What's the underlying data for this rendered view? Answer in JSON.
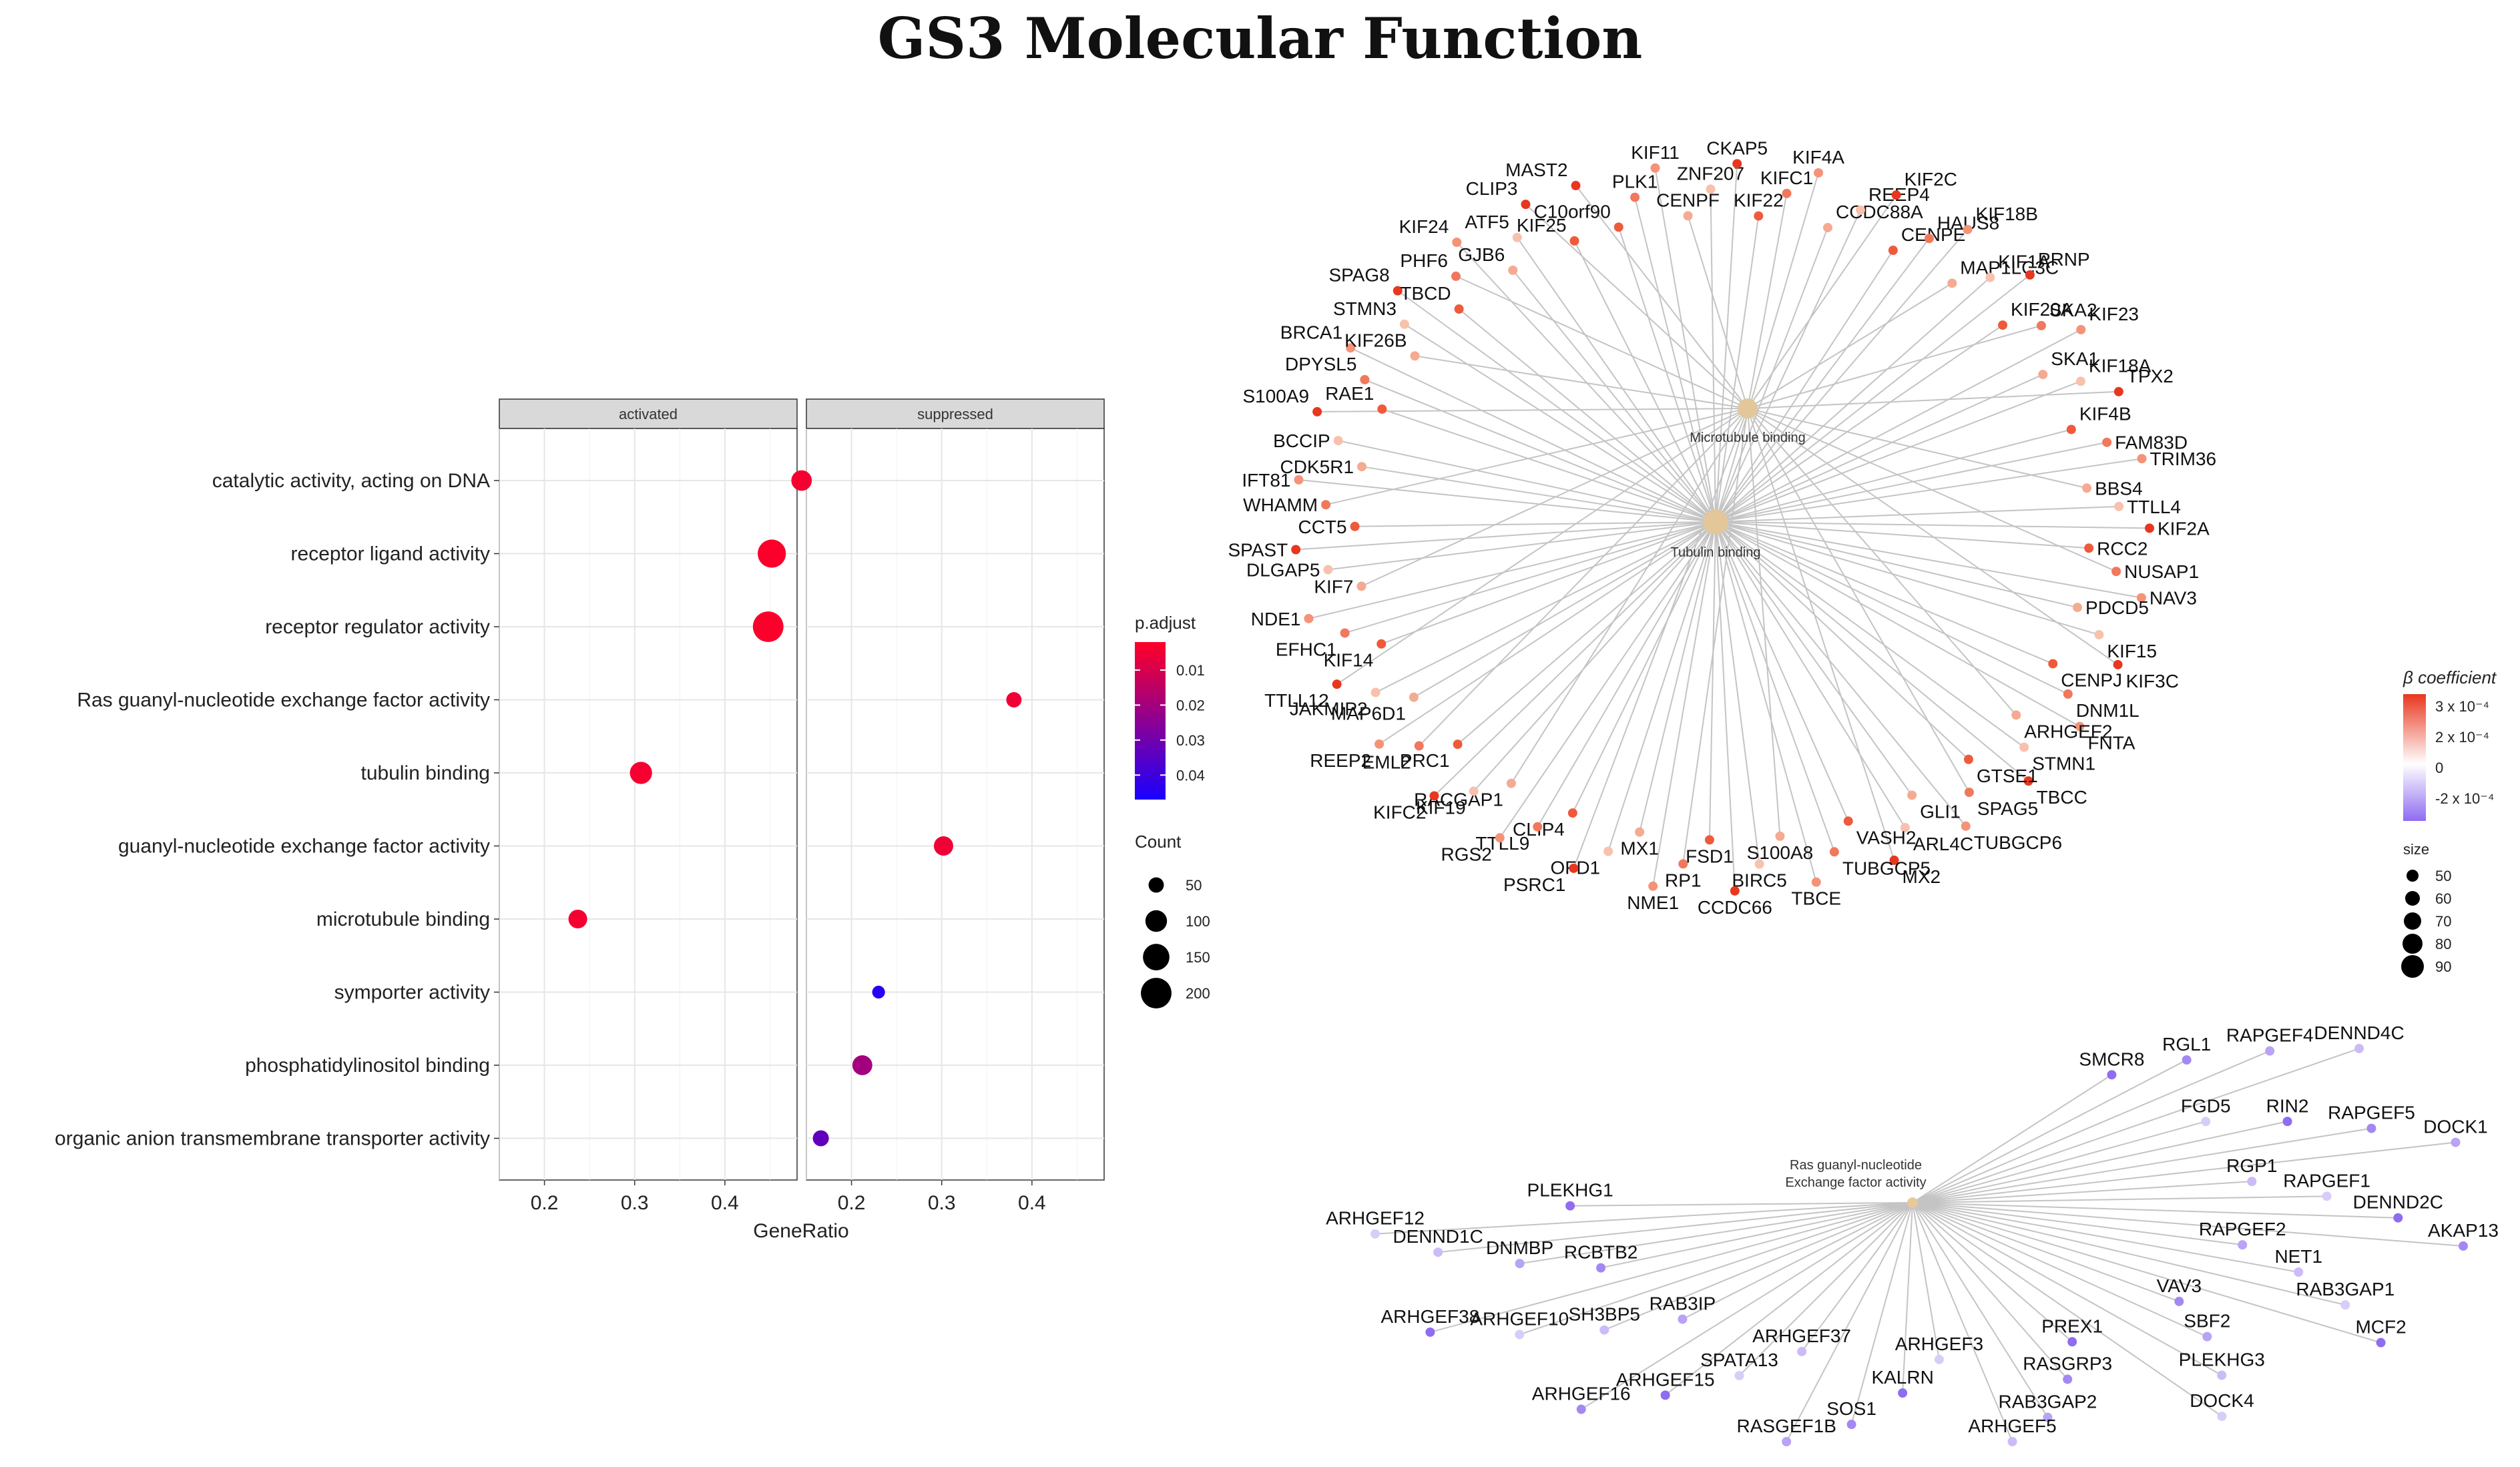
{
  "title": "GS3 Molecular Function",
  "chart_data": [
    {
      "type": "scatter",
      "subtype": "dotplot",
      "facets": [
        "activated",
        "suppressed"
      ],
      "xlabel": "GeneRatio",
      "x_ticks": [
        "0.2",
        "0.3",
        "0.4"
      ],
      "xlim": [
        0.15,
        0.48
      ],
      "categories": [
        "catalytic activity, acting on DNA",
        "receptor ligand activity",
        "receptor regulator activity",
        "Ras guanyl-nucleotide exchange factor activity",
        "tubulin binding",
        "guanyl-nucleotide exchange factor activity",
        "microtubule binding",
        "symporter activity",
        "phosphatidylinositol binding",
        "organic anion transmembrane transporter activity"
      ],
      "points": [
        {
          "term": "catalytic activity, acting on DNA",
          "facet": "activated",
          "gene_ratio": 0.485,
          "count": 90,
          "p_adjust": 0.004
        },
        {
          "term": "receptor ligand activity",
          "facet": "activated",
          "gene_ratio": 0.452,
          "count": 170,
          "p_adjust": 0.003
        },
        {
          "term": "receptor regulator activity",
          "facet": "activated",
          "gene_ratio": 0.448,
          "count": 200,
          "p_adjust": 0.003
        },
        {
          "term": "Ras guanyl-nucleotide exchange factor activity",
          "facet": "suppressed",
          "gene_ratio": 0.38,
          "count": 50,
          "p_adjust": 0.005
        },
        {
          "term": "tubulin binding",
          "facet": "activated",
          "gene_ratio": 0.307,
          "count": 105,
          "p_adjust": 0.004
        },
        {
          "term": "guanyl-nucleotide exchange factor activity",
          "facet": "suppressed",
          "gene_ratio": 0.302,
          "count": 80,
          "p_adjust": 0.005
        },
        {
          "term": "microtubule binding",
          "facet": "activated",
          "gene_ratio": 0.237,
          "count": 75,
          "p_adjust": 0.004
        },
        {
          "term": "symporter activity",
          "facet": "suppressed",
          "gene_ratio": 0.23,
          "count": 35,
          "p_adjust": 0.045
        },
        {
          "term": "phosphatidylinositol binding",
          "facet": "suppressed",
          "gene_ratio": 0.212,
          "count": 85,
          "p_adjust": 0.02
        },
        {
          "term": "organic anion transmembrane transporter activity",
          "facet": "suppressed",
          "gene_ratio": 0.166,
          "count": 55,
          "p_adjust": 0.033
        }
      ],
      "legend_color": {
        "title": "p.adjust",
        "ticks": [
          "0.01",
          "0.02",
          "0.03",
          "0.04"
        ],
        "range": [
          0.002,
          0.047
        ],
        "low_color": "#ff0026",
        "high_color": "#1a00ff"
      },
      "legend_size": {
        "title": "Count",
        "ticks": [
          "50",
          "100",
          "150",
          "200"
        ]
      }
    },
    {
      "type": "network",
      "hubs": [
        {
          "id": "mb",
          "label": "Microtubule binding"
        },
        {
          "id": "tb",
          "label": "Tubulin binding"
        },
        {
          "id": "ras",
          "label": "Ras guanyl-nucleotide\nExchange factor activity"
        }
      ],
      "legend": {
        "color_title": "β coefficient",
        "color_ticks": [
          "3 x 10⁻⁴",
          "2 x 10⁻⁴",
          "0",
          "-2 x 10⁻⁴"
        ],
        "size_title": "size",
        "size_ticks": [
          "50",
          "60",
          "70",
          "80",
          "90"
        ]
      },
      "genes_tubulin": [
        "MAST2",
        "C10orf90",
        "PLK1",
        "KIF11",
        "CENPF",
        "ZNF207",
        "CKAP5",
        "KIF22",
        "KIFC1",
        "KIF4A",
        "CCDC88A",
        "REEP4",
        "KIF2C",
        "CENPE",
        "HAUS8",
        "KIF18B",
        "MAP1LC3C",
        "KIF1A",
        "PRNP",
        "KIF20A",
        "SKA2",
        "KIF23",
        "SKA1",
        "KIF18A",
        "TPX2",
        "KIF4B",
        "FAM83D",
        "TRIM36",
        "BBS4",
        "TTLL4",
        "KIF2A",
        "RCC2",
        "NUSAP1",
        "NAV3",
        "PDCD5",
        "KIF15",
        "KIF3C",
        "CENPJ",
        "DNM1L",
        "FNTA",
        "ARHGEF2",
        "STMN1",
        "TBCC",
        "GTSE1",
        "SPAG5",
        "TUBGCP6",
        "GLI1",
        "ARL4C",
        "MX2",
        "VASH2",
        "TUBGCP5",
        "TBCE",
        "S100A8",
        "BIRC5",
        "CCDC66",
        "FSD1",
        "RP1",
        "NME1",
        "MX1",
        "OFD1",
        "PSRC1",
        "CLIP4",
        "TTLL9",
        "RGS2",
        "RACGAP1",
        "KIF19",
        "KIFC2",
        "PRC1",
        "EML2",
        "REEP2",
        "MAP6D1",
        "JAKMIP2",
        "TTLL12",
        "KIF14",
        "EFHC1",
        "NDE1",
        "KIF7",
        "DLGAP5",
        "SPAST",
        "CCT5",
        "WHAMM",
        "IFT81",
        "CDK5R1",
        "BCCIP",
        "S100A9",
        "RAE1",
        "DPYSL5",
        "BRCA1",
        "KIF26B",
        "STMN3",
        "SPAG8",
        "TBCD",
        "PHF6",
        "KIF24",
        "GJB6",
        "ATF5",
        "CLIP3",
        "KIF25"
      ],
      "genes_ras": [
        "SMCR8",
        "RGL1",
        "RAPGEF4",
        "DENND4C",
        "FGD5",
        "RIN2",
        "RAPGEF5",
        "DOCK1",
        "RGP1",
        "RAPGEF1",
        "DENND2C",
        "AKAP13",
        "RAPGEF2",
        "NET1",
        "RAB3GAP1",
        "MCF2",
        "VAV3",
        "SBF2",
        "PLEKHG3",
        "DOCK4",
        "PREX1",
        "RASGRP3",
        "RAB3GAP2",
        "ARHGEF5",
        "ARHGEF3",
        "KALRN",
        "SOS1",
        "RASGEF1B",
        "ARHGEF37",
        "SPATA13",
        "ARHGEF15",
        "ARHGEF16",
        "RAB3IP",
        "SH3BP5",
        "ARHGEF10",
        "ARHGEF38",
        "RCBTB2",
        "DNMBP",
        "DENND1C",
        "ARHGEF12",
        "PLEKHG1"
      ]
    }
  ]
}
